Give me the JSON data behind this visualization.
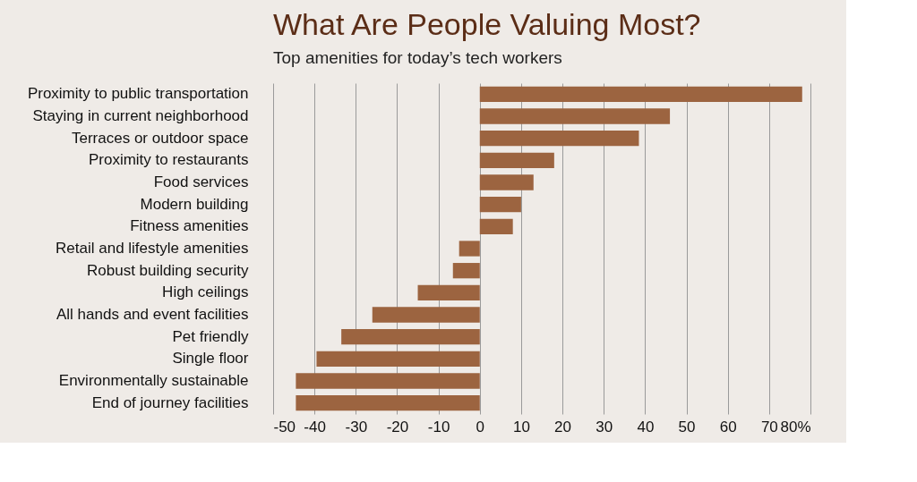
{
  "chart_data": {
    "type": "bar",
    "orientation": "horizontal",
    "title": "What Are People Valuing Most?",
    "subtitle": "Top amenities for today’s tech workers",
    "categories": [
      "Proximity to public transportation",
      "Staying in current neighborhood",
      "Terraces or outdoor space",
      "Proximity to restaurants",
      "Food services",
      "Modern building",
      "Fitness amenities",
      "Retail and lifestyle amenities",
      "Robust building security",
      "High ceilings",
      "All hands and event facilities",
      "Pet friendly",
      "Single floor",
      "Environmentally sustainable",
      "End of journey facilities"
    ],
    "values": [
      78,
      46,
      38.5,
      18,
      13,
      10,
      8,
      -5,
      -6.5,
      -15,
      -26,
      -33.5,
      -39.5,
      -44.5,
      -44.5
    ],
    "color": "#9c6440",
    "xlim": [
      -50,
      80
    ],
    "xticks": [
      -50,
      -40,
      -30,
      -20,
      -10,
      0,
      10,
      20,
      30,
      40,
      50,
      60,
      70,
      {
        "value": 80,
        "label": "80%"
      }
    ],
    "grid": "x"
  }
}
